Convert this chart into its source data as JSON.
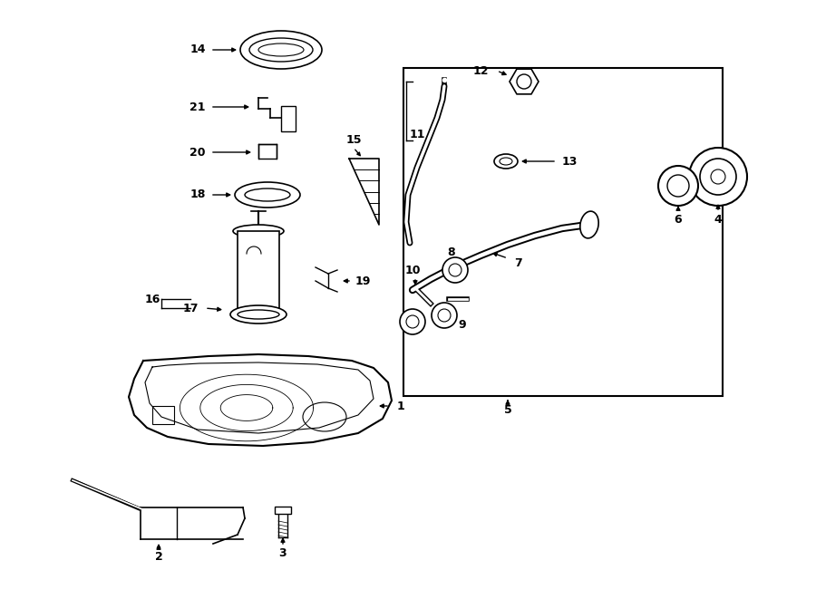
{
  "bg_color": "#ffffff",
  "line_color": "#000000",
  "fig_width": 9.0,
  "fig_height": 6.61,
  "dpi": 100,
  "xlim": [
    0,
    900
  ],
  "ylim": [
    0,
    661
  ]
}
